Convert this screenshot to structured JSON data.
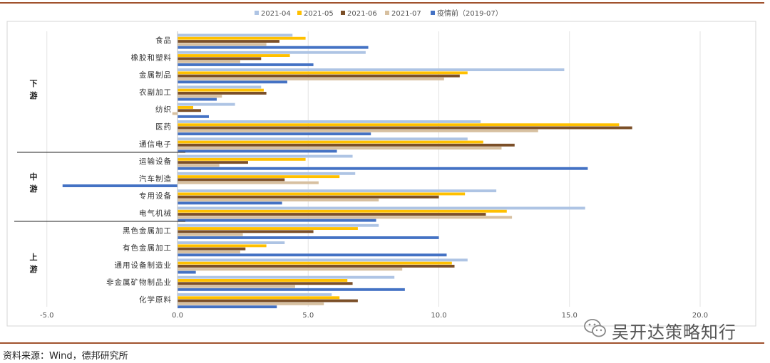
{
  "chart_data": {
    "type": "bar",
    "orientation": "horizontal",
    "title": "",
    "xlabel": "",
    "ylabel": "",
    "xlim": [
      -5,
      22.5
    ],
    "x_ticks": [
      "-5.0",
      "0.0",
      "5.0",
      "10.0",
      "15.0",
      "20.0"
    ],
    "x_tick_values": [
      -5,
      0,
      5,
      10,
      15,
      20
    ],
    "grid": "vertical",
    "legend": "top",
    "categories": [
      "食品",
      "橡胶和塑料",
      "金属制品",
      "农副加工",
      "纺织",
      "医药",
      "通信电子",
      "运输设备",
      "汽车制造",
      "专用设备",
      "电气机械",
      "黑色金属加工",
      "有色金属加工",
      "通用设备制造业",
      "非金属矿物制品业",
      "化学原料"
    ],
    "groups": [
      {
        "label": "下\n游",
        "chars": [
          "下",
          "游"
        ],
        "categories": [
          "食品",
          "橡胶和塑料",
          "金属制品",
          "农副加工",
          "纺织",
          "医药",
          "通信电子"
        ]
      },
      {
        "label": "中\n游",
        "chars": [
          "中",
          "游"
        ],
        "categories": [
          "运输设备",
          "汽车制造",
          "专用设备",
          "电气机械"
        ]
      },
      {
        "label": "上\n游",
        "chars": [
          "上",
          "游"
        ],
        "categories": [
          "黑色金属加工",
          "有色金属加工",
          "通用设备制造业",
          "非金属矿物制品业",
          "化学原料"
        ]
      }
    ],
    "series": [
      {
        "name": "2021-04",
        "color": "#aec4e4",
        "values": [
          4.4,
          7.2,
          14.8,
          3.2,
          2.2,
          11.6,
          11.1,
          6.7,
          6.8,
          12.2,
          15.6,
          7.7,
          4.1,
          11.1,
          8.3,
          5.9
        ]
      },
      {
        "name": "2021-05",
        "color": "#ffc000",
        "values": [
          4.9,
          4.3,
          11.1,
          3.3,
          0.6,
          16.9,
          11.7,
          4.9,
          6.2,
          11.0,
          12.6,
          6.9,
          3.4,
          10.5,
          6.5,
          6.2
        ]
      },
      {
        "name": "2021-06",
        "color": "#7b4f28",
        "values": [
          3.9,
          3.2,
          10.8,
          3.4,
          0.9,
          17.4,
          12.9,
          2.7,
          4.1,
          10.0,
          11.8,
          5.2,
          2.6,
          10.6,
          6.7,
          6.9
        ]
      },
      {
        "name": "2021-07",
        "color": "#d7c0a0",
        "values": [
          3.4,
          2.4,
          10.2,
          1.7,
          -0.2,
          13.8,
          12.4,
          1.6,
          5.4,
          7.7,
          12.8,
          2.5,
          2.4,
          8.6,
          4.5,
          5.6
        ]
      },
      {
        "name": "疫情前（2019-07）",
        "color": "#4472c4",
        "values": [
          7.3,
          5.2,
          4.2,
          1.5,
          1.2,
          7.4,
          6.1,
          15.7,
          -4.4,
          4.0,
          7.6,
          10.0,
          10.3,
          0.7,
          8.7,
          3.8
        ]
      }
    ]
  },
  "source_note": "资料来源：Wind，德邦研究所",
  "watermark": {
    "text": "吴开达策略知行",
    "icon": "wechat-icon"
  }
}
